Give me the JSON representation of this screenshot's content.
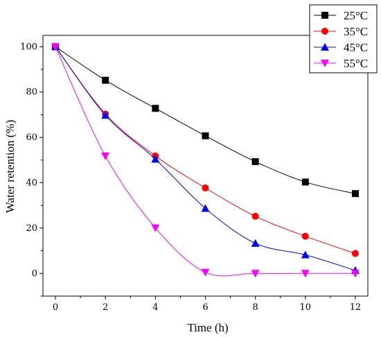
{
  "chart_data": {
    "type": "line",
    "xlabel": "Time (h)",
    "ylabel": "Water retention (%)",
    "xlim": [
      -0.5,
      12.5
    ],
    "ylim": [
      -10,
      105
    ],
    "xticks": [
      0,
      2,
      4,
      6,
      8,
      10,
      12
    ],
    "yticks": [
      0,
      20,
      40,
      60,
      80,
      100
    ],
    "grid": false,
    "legend_position": "top-right",
    "x": [
      0,
      2,
      4,
      6,
      8,
      10,
      12
    ],
    "series": [
      {
        "name": "25°C",
        "color": "#000000",
        "marker": "square",
        "values": [
          100,
          85.2,
          72.8,
          60.7,
          49.3,
          40.3,
          35.2
        ]
      },
      {
        "name": "35°C",
        "color": "#ff0000",
        "marker": "circle",
        "values": [
          100,
          70.3,
          51.8,
          37.7,
          25.2,
          16.4,
          8.8
        ]
      },
      {
        "name": "45°C",
        "color": "#0000ff",
        "marker": "triangle-up",
        "values": [
          100,
          69.8,
          50.4,
          28.7,
          13.3,
          8.2,
          1.3
        ]
      },
      {
        "name": "55°C",
        "color": "#ff00ff",
        "marker": "triangle-down",
        "values": [
          100,
          51.8,
          20.1,
          0.5,
          0.0,
          0.0,
          0.0
        ]
      }
    ]
  }
}
